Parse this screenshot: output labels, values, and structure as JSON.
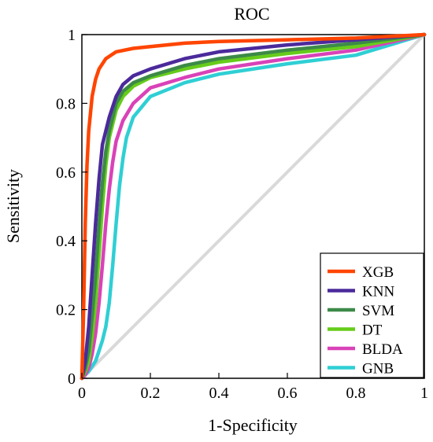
{
  "chart_data": {
    "type": "line",
    "title": "ROC",
    "xlabel": "1-Specificity",
    "ylabel": "Sensitivity",
    "xlim": [
      0,
      1
    ],
    "ylim": [
      0,
      1
    ],
    "xticks": [
      "0",
      "0.2",
      "0.4",
      "0.6",
      "0.8",
      "1"
    ],
    "yticks": [
      "0",
      "0.2",
      "0.4",
      "0.6",
      "0.8",
      "1"
    ],
    "grid": false,
    "legend_position": "bottom-right",
    "reference_line": {
      "x": [
        0,
        1
      ],
      "y": [
        0,
        1
      ],
      "color": "#d9d9d9"
    },
    "series": [
      {
        "name": "XGB",
        "color": "#ff4500",
        "x": [
          0,
          0.005,
          0.01,
          0.015,
          0.02,
          0.03,
          0.04,
          0.05,
          0.07,
          0.1,
          0.15,
          0.2,
          0.3,
          0.4,
          0.6,
          0.8,
          1
        ],
        "y": [
          0,
          0.2,
          0.45,
          0.62,
          0.72,
          0.82,
          0.87,
          0.9,
          0.93,
          0.95,
          0.96,
          0.965,
          0.975,
          0.98,
          0.985,
          0.99,
          1
        ]
      },
      {
        "name": "KNN",
        "color": "#4b2a9b",
        "x": [
          0,
          0.01,
          0.02,
          0.03,
          0.04,
          0.05,
          0.06,
          0.08,
          0.1,
          0.12,
          0.15,
          0.2,
          0.3,
          0.4,
          0.6,
          0.8,
          1
        ],
        "y": [
          0,
          0.05,
          0.15,
          0.3,
          0.45,
          0.58,
          0.68,
          0.76,
          0.82,
          0.855,
          0.88,
          0.9,
          0.93,
          0.95,
          0.97,
          0.985,
          1
        ]
      },
      {
        "name": "SVM",
        "color": "#3c8a48",
        "x": [
          0,
          0.01,
          0.02,
          0.03,
          0.04,
          0.05,
          0.06,
          0.07,
          0.08,
          0.1,
          0.12,
          0.15,
          0.2,
          0.3,
          0.4,
          0.6,
          0.8,
          1
        ],
        "y": [
          0,
          0.03,
          0.08,
          0.18,
          0.3,
          0.45,
          0.57,
          0.66,
          0.72,
          0.8,
          0.835,
          0.86,
          0.88,
          0.91,
          0.93,
          0.955,
          0.975,
          1
        ]
      },
      {
        "name": "DT",
        "color": "#66cc1a",
        "x": [
          0,
          0.01,
          0.02,
          0.03,
          0.04,
          0.05,
          0.06,
          0.07,
          0.08,
          0.1,
          0.12,
          0.15,
          0.2,
          0.3,
          0.4,
          0.6,
          0.8,
          1
        ],
        "y": [
          0,
          0.02,
          0.05,
          0.12,
          0.22,
          0.36,
          0.5,
          0.62,
          0.7,
          0.78,
          0.82,
          0.85,
          0.875,
          0.9,
          0.92,
          0.945,
          0.965,
          1
        ]
      },
      {
        "name": "BLDA",
        "color": "#d942b8",
        "x": [
          0,
          0.01,
          0.02,
          0.03,
          0.04,
          0.05,
          0.06,
          0.07,
          0.08,
          0.09,
          0.1,
          0.12,
          0.15,
          0.2,
          0.3,
          0.4,
          0.6,
          0.8,
          1
        ],
        "y": [
          0,
          0.01,
          0.03,
          0.07,
          0.13,
          0.22,
          0.33,
          0.45,
          0.55,
          0.63,
          0.69,
          0.75,
          0.8,
          0.845,
          0.875,
          0.9,
          0.93,
          0.955,
          1
        ]
      },
      {
        "name": "GNB",
        "color": "#2fcfd4",
        "x": [
          0,
          0.02,
          0.04,
          0.05,
          0.06,
          0.07,
          0.08,
          0.09,
          0.1,
          0.11,
          0.12,
          0.13,
          0.15,
          0.2,
          0.3,
          0.4,
          0.6,
          0.8,
          1
        ],
        "y": [
          0,
          0.02,
          0.05,
          0.08,
          0.11,
          0.15,
          0.22,
          0.33,
          0.45,
          0.56,
          0.64,
          0.7,
          0.76,
          0.82,
          0.86,
          0.885,
          0.915,
          0.94,
          1
        ]
      }
    ]
  }
}
